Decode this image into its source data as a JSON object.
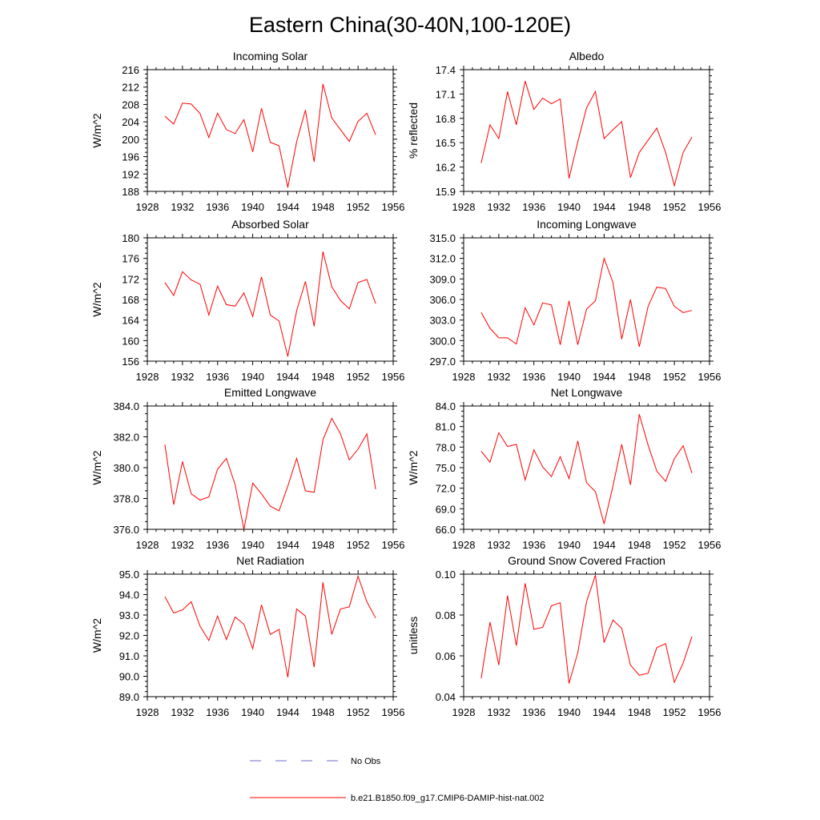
{
  "title": "Eastern China(30-40N,100-120E)",
  "legend": {
    "obs_label": "No Obs",
    "obs_color": "#6b6bd0",
    "model_label": "b.e21.B1850.f09_g17.CMIP6-DAMIP-hist-nat.002",
    "model_color": "#ff0000"
  },
  "chart_data": [
    {
      "type": "line",
      "title": "Incoming Solar",
      "ylabel": "W/m^2",
      "xlim": [
        1928,
        1956
      ],
      "xticks": [
        1928,
        1932,
        1936,
        1940,
        1944,
        1948,
        1952,
        1956
      ],
      "ylim": [
        188,
        216
      ],
      "yticks": [
        188,
        192,
        196,
        200,
        204,
        208,
        212,
        216
      ],
      "ytick_labels": [
        "188",
        "192",
        "196",
        "200",
        "204",
        "208",
        "212",
        "216"
      ],
      "x": [
        1930,
        1931,
        1932,
        1933,
        1934,
        1935,
        1936,
        1937,
        1938,
        1939,
        1940,
        1941,
        1942,
        1943,
        1944,
        1945,
        1946,
        1947,
        1948,
        1949,
        1950,
        1951,
        1952,
        1953,
        1954
      ],
      "series": [
        {
          "values": [
            205.3,
            203.5,
            208.3,
            208.1,
            205.9,
            200.4,
            206.0,
            202.2,
            201.3,
            204.5,
            197.1,
            207.1,
            199.3,
            198.5,
            188.9,
            199.4,
            206.7,
            194.8,
            212.7,
            204.9,
            202.2,
            199.5,
            204.1,
            206.0,
            201.0
          ]
        }
      ]
    },
    {
      "type": "line",
      "title": "Albedo",
      "ylabel": "% reflected",
      "xlim": [
        1928,
        1956
      ],
      "xticks": [
        1928,
        1932,
        1936,
        1940,
        1944,
        1948,
        1952,
        1956
      ],
      "ylim": [
        15.9,
        17.4
      ],
      "yticks": [
        15.9,
        16.2,
        16.5,
        16.8,
        17.1,
        17.4
      ],
      "ytick_labels": [
        "15.9",
        "16.2",
        "16.5",
        "16.8",
        "17.1",
        "17.4"
      ],
      "x": [
        1930,
        1931,
        1932,
        1933,
        1934,
        1935,
        1936,
        1937,
        1938,
        1939,
        1940,
        1941,
        1942,
        1943,
        1944,
        1945,
        1946,
        1947,
        1948,
        1949,
        1950,
        1951,
        1952,
        1953,
        1954
      ],
      "series": [
        {
          "values": [
            16.25,
            16.72,
            16.55,
            17.13,
            16.72,
            17.26,
            16.91,
            17.05,
            16.98,
            17.04,
            16.06,
            16.51,
            16.93,
            17.13,
            16.55,
            16.66,
            16.76,
            16.07,
            16.38,
            16.53,
            16.68,
            16.38,
            15.97,
            16.38,
            16.57
          ]
        }
      ]
    },
    {
      "type": "line",
      "title": "Absorbed Solar",
      "ylabel": "W/m^2",
      "xlim": [
        1928,
        1956
      ],
      "xticks": [
        1928,
        1932,
        1936,
        1940,
        1944,
        1948,
        1952,
        1956
      ],
      "ylim": [
        156,
        180
      ],
      "yticks": [
        156,
        160,
        164,
        168,
        172,
        176,
        180
      ],
      "ytick_labels": [
        "156",
        "160",
        "164",
        "168",
        "172",
        "176",
        "180"
      ],
      "x": [
        1930,
        1931,
        1932,
        1933,
        1934,
        1935,
        1936,
        1937,
        1938,
        1939,
        1940,
        1941,
        1942,
        1943,
        1944,
        1945,
        1946,
        1947,
        1948,
        1949,
        1950,
        1951,
        1952,
        1953,
        1954
      ],
      "series": [
        {
          "values": [
            171.3,
            168.8,
            173.4,
            171.8,
            171.0,
            165.0,
            170.6,
            167.0,
            166.7,
            169.3,
            164.7,
            172.4,
            165.0,
            163.8,
            156.9,
            165.8,
            171.5,
            162.8,
            177.3,
            170.5,
            167.8,
            166.2,
            171.3,
            171.9,
            167.2
          ]
        }
      ]
    },
    {
      "type": "line",
      "title": "Incoming Longwave",
      "ylabel": "",
      "xlim": [
        1928,
        1956
      ],
      "xticks": [
        1928,
        1932,
        1936,
        1940,
        1944,
        1948,
        1952,
        1956
      ],
      "ylim": [
        297,
        315
      ],
      "yticks": [
        297,
        300,
        303,
        306,
        309,
        312,
        315
      ],
      "ytick_labels": [
        "297.0",
        "300.0",
        "303.0",
        "306.0",
        "309.0",
        "312.0",
        "315.0"
      ],
      "x": [
        1930,
        1931,
        1932,
        1933,
        1934,
        1935,
        1936,
        1937,
        1938,
        1939,
        1940,
        1941,
        1942,
        1943,
        1944,
        1945,
        1946,
        1947,
        1948,
        1949,
        1950,
        1951,
        1952,
        1953,
        1954
      ],
      "series": [
        {
          "values": [
            304.1,
            301.8,
            300.4,
            300.4,
            299.5,
            304.8,
            302.3,
            305.5,
            305.2,
            299.4,
            305.8,
            299.4,
            304.6,
            305.8,
            312.0,
            308.5,
            300.2,
            306.0,
            299.1,
            305.0,
            307.8,
            307.6,
            305.0,
            304.1,
            304.4
          ]
        }
      ]
    },
    {
      "type": "line",
      "title": "Emitted Longwave",
      "ylabel": "W/m^2",
      "xlim": [
        1928,
        1956
      ],
      "xticks": [
        1928,
        1932,
        1936,
        1940,
        1944,
        1948,
        1952,
        1956
      ],
      "ylim": [
        376,
        384
      ],
      "yticks": [
        376,
        378,
        380,
        382,
        384
      ],
      "ytick_labels": [
        "376.0",
        "378.0",
        "380.0",
        "382.0",
        "384.0"
      ],
      "x": [
        1930,
        1931,
        1932,
        1933,
        1934,
        1935,
        1936,
        1937,
        1938,
        1939,
        1940,
        1941,
        1942,
        1943,
        1944,
        1945,
        1946,
        1947,
        1948,
        1949,
        1950,
        1951,
        1952,
        1953,
        1954
      ],
      "series": [
        {
          "values": [
            381.5,
            377.6,
            380.4,
            378.3,
            377.9,
            378.1,
            379.9,
            380.6,
            378.9,
            376.0,
            379.0,
            378.3,
            377.5,
            377.2,
            378.8,
            380.6,
            378.5,
            378.4,
            381.8,
            383.2,
            382.2,
            380.5,
            381.2,
            382.2,
            378.6
          ]
        }
      ]
    },
    {
      "type": "line",
      "title": "Net Longwave",
      "ylabel": "W/m^2",
      "xlim": [
        1928,
        1956
      ],
      "xticks": [
        1928,
        1932,
        1936,
        1940,
        1944,
        1948,
        1952,
        1956
      ],
      "ylim": [
        66,
        84
      ],
      "yticks": [
        66,
        69,
        72,
        75,
        78,
        81,
        84
      ],
      "ytick_labels": [
        "66.0",
        "69.0",
        "72.0",
        "75.0",
        "78.0",
        "81.0",
        "84.0"
      ],
      "x": [
        1930,
        1931,
        1932,
        1933,
        1934,
        1935,
        1936,
        1937,
        1938,
        1939,
        1940,
        1941,
        1942,
        1943,
        1944,
        1945,
        1946,
        1947,
        1948,
        1949,
        1950,
        1951,
        1952,
        1953,
        1954
      ],
      "series": [
        {
          "values": [
            77.4,
            75.8,
            80.1,
            78.1,
            78.4,
            73.2,
            77.6,
            75.1,
            73.7,
            76.6,
            73.4,
            78.9,
            72.8,
            71.5,
            66.8,
            72.3,
            78.4,
            72.5,
            82.8,
            78.3,
            74.5,
            73.0,
            76.3,
            78.2,
            74.2
          ]
        }
      ]
    },
    {
      "type": "line",
      "title": "Net Radiation",
      "ylabel": "W/m^2",
      "xlim": [
        1928,
        1956
      ],
      "xticks": [
        1928,
        1932,
        1936,
        1940,
        1944,
        1948,
        1952,
        1956
      ],
      "ylim": [
        89,
        95
      ],
      "yticks": [
        89,
        90,
        91,
        92,
        93,
        94,
        95
      ],
      "ytick_labels": [
        "89.0",
        "90.0",
        "91.0",
        "92.0",
        "93.0",
        "94.0",
        "95.0"
      ],
      "x": [
        1930,
        1931,
        1932,
        1933,
        1934,
        1935,
        1936,
        1937,
        1938,
        1939,
        1940,
        1941,
        1942,
        1943,
        1944,
        1945,
        1946,
        1947,
        1948,
        1949,
        1950,
        1951,
        1952,
        1953,
        1954
      ],
      "series": [
        {
          "values": [
            93.9,
            93.1,
            93.25,
            93.65,
            92.45,
            91.75,
            92.95,
            91.8,
            92.9,
            92.55,
            91.35,
            93.5,
            92.05,
            92.3,
            89.95,
            93.3,
            92.95,
            90.45,
            94.6,
            92.05,
            93.3,
            93.4,
            94.9,
            93.65,
            92.85
          ]
        }
      ]
    },
    {
      "type": "line",
      "title": "Ground Snow Covered Fraction",
      "ylabel": "unitless",
      "xlim": [
        1928,
        1956
      ],
      "xticks": [
        1928,
        1932,
        1936,
        1940,
        1944,
        1948,
        1952,
        1956
      ],
      "ylim": [
        0.04,
        0.1
      ],
      "yticks": [
        0.04,
        0.06,
        0.08,
        0.1
      ],
      "ytick_labels": [
        "0.04",
        "0.06",
        "0.08",
        "0.10"
      ],
      "x": [
        1930,
        1931,
        1932,
        1933,
        1934,
        1935,
        1936,
        1937,
        1938,
        1939,
        1940,
        1941,
        1942,
        1943,
        1944,
        1945,
        1946,
        1947,
        1948,
        1949,
        1950,
        1951,
        1952,
        1953,
        1954
      ],
      "series": [
        {
          "values": [
            0.049,
            0.0765,
            0.0555,
            0.0895,
            0.065,
            0.0955,
            0.073,
            0.074,
            0.0845,
            0.086,
            0.0465,
            0.0615,
            0.0865,
            0.0995,
            0.0665,
            0.0775,
            0.0735,
            0.0555,
            0.0505,
            0.0515,
            0.064,
            0.066,
            0.047,
            0.0565,
            0.0695
          ]
        }
      ]
    }
  ]
}
